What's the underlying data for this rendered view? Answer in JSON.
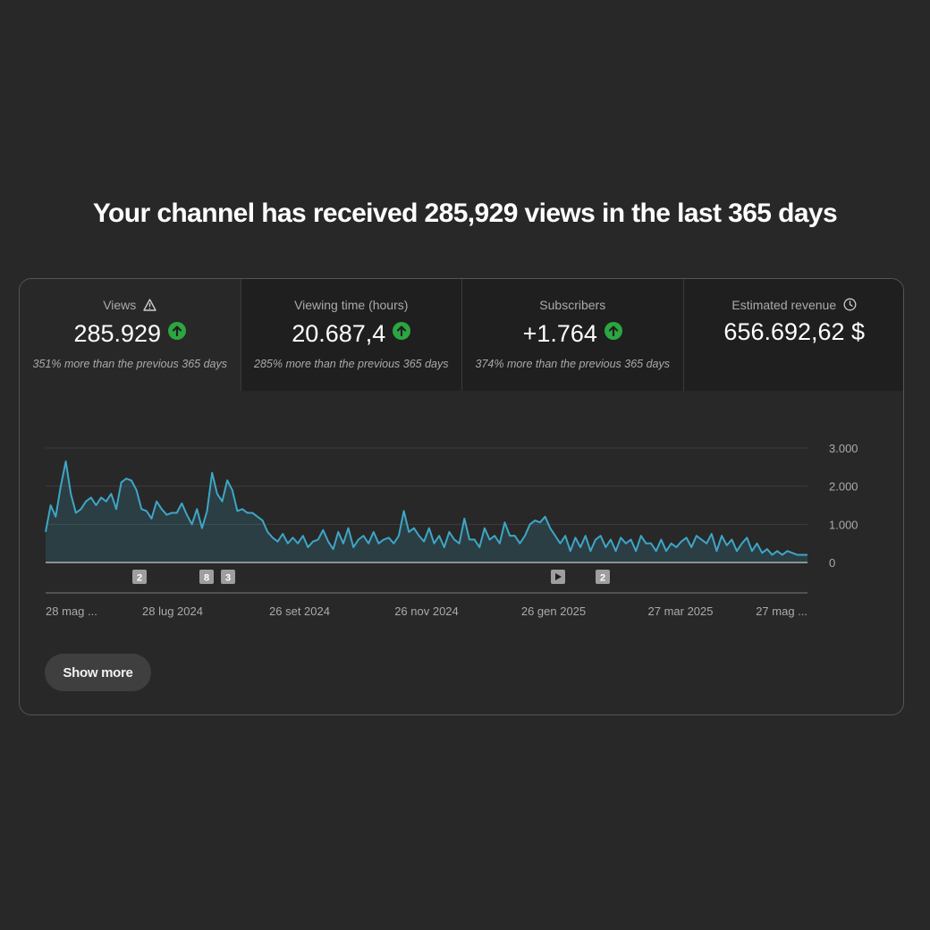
{
  "headline": "Your channel has received 285,929 views in the last 365 days",
  "metrics": [
    {
      "label": "Views",
      "value": "285.929",
      "note": "351% more than the previous 365 days",
      "label_icon": "warning-icon",
      "trend": "up"
    },
    {
      "label": "Viewing time (hours)",
      "value": "20.687,4",
      "note": "285% more than the previous 365 days",
      "trend": "up"
    },
    {
      "label": "Subscribers",
      "value": "+1.764",
      "note": "374% more than the previous 365 days",
      "trend": "up"
    },
    {
      "label": "Estimated revenue",
      "value": "656.692,62 $",
      "note": "",
      "label_icon": "clock-icon"
    }
  ],
  "colors": {
    "line": "#3ea6c6",
    "trend_up": "#2ba640",
    "background": "#282828"
  },
  "chart_data": {
    "type": "area",
    "x_tick_labels": [
      "28 mag ...",
      "28 lug 2024",
      "26 set 2024",
      "26 nov 2024",
      "26 gen 2025",
      "27 mar 2025",
      "27 mag ..."
    ],
    "y_tick_labels": [
      "3.000",
      "2.000",
      "1.000",
      "0"
    ],
    "ylim": [
      0,
      3000
    ],
    "grid": true,
    "values": [
      800,
      1500,
      1200,
      2000,
      2650,
      1800,
      1300,
      1400,
      1600,
      1700,
      1500,
      1700,
      1600,
      1800,
      1400,
      2100,
      2200,
      2150,
      1900,
      1400,
      1350,
      1150,
      1600,
      1400,
      1250,
      1300,
      1300,
      1550,
      1250,
      1000,
      1400,
      900,
      1350,
      2350,
      1800,
      1600,
      2150,
      1900,
      1350,
      1400,
      1300,
      1300,
      1200,
      1100,
      800,
      650,
      550,
      750,
      500,
      650,
      500,
      700,
      400,
      550,
      600,
      850,
      550,
      350,
      800,
      500,
      900,
      400,
      600,
      700,
      500,
      800,
      500,
      600,
      650,
      500,
      700,
      1350,
      800,
      900,
      700,
      550,
      900,
      500,
      700,
      400,
      800,
      600,
      500,
      1150,
      600,
      600,
      400,
      900,
      600,
      700,
      500,
      1050,
      700,
      700,
      500,
      700,
      1000,
      1100,
      1050,
      1200,
      900,
      700,
      500,
      700,
      300,
      650,
      400,
      700,
      300,
      600,
      700,
      400,
      600,
      300,
      650,
      500,
      600,
      300,
      700,
      500,
      500,
      300,
      600,
      300,
      500,
      400,
      550,
      650,
      400,
      700,
      600,
      500,
      750,
      300,
      700,
      450,
      600,
      300,
      500,
      650,
      300,
      500,
      250,
      350,
      200,
      300,
      200,
      300,
      250,
      200,
      200,
      200
    ]
  },
  "annotations": [
    {
      "label": "2",
      "kind": "badge"
    },
    {
      "label": "8",
      "kind": "badge"
    },
    {
      "label": "3",
      "kind": "badge"
    },
    {
      "label": "",
      "kind": "video",
      "icon": "play-icon"
    },
    {
      "label": "2",
      "kind": "badge"
    }
  ],
  "show_more_label": "Show more"
}
